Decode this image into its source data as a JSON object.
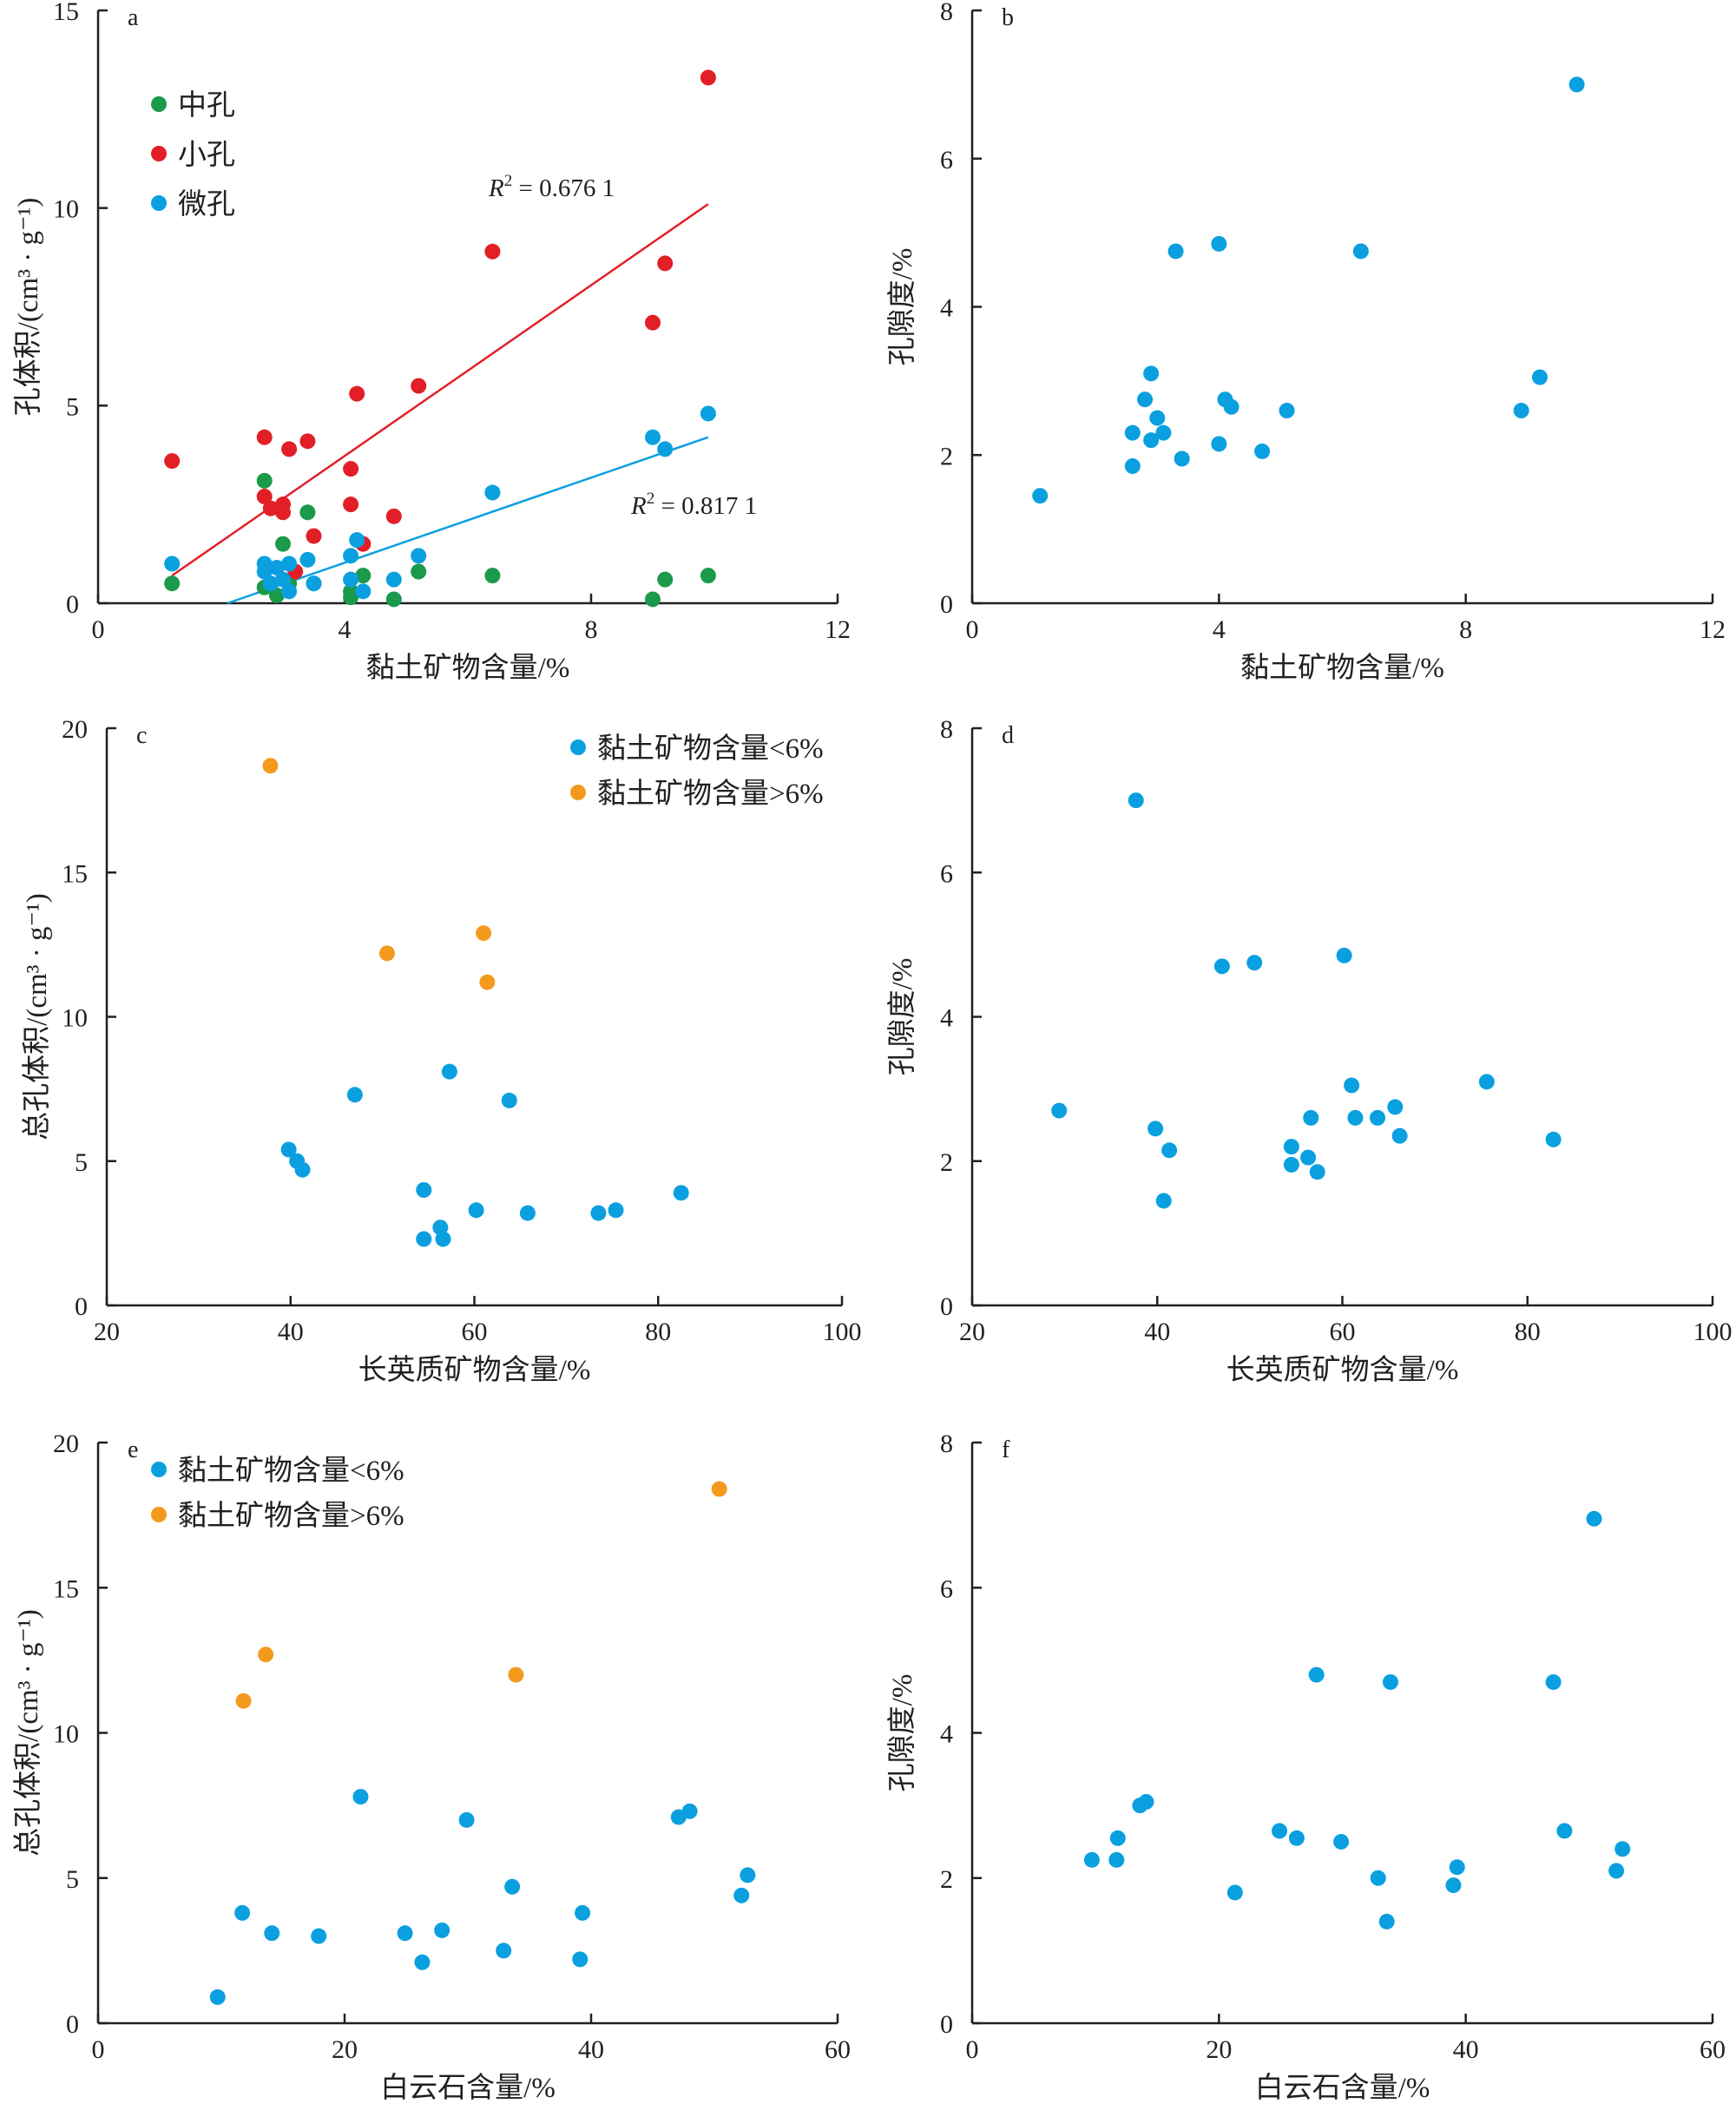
{
  "colors": {
    "green": "#1a9a4a",
    "red": "#e21f26",
    "blue": "#0aa0e0",
    "orange": "#f39a1e",
    "axis": "#231f20"
  },
  "chart_data": [
    {
      "id": "a",
      "type": "scatter",
      "letter": "a",
      "xlabel": "黏土矿物含量/%",
      "ylabel": "孔体积/(cm³ · g⁻¹)",
      "xlim": [
        0,
        12
      ],
      "ylim": [
        0,
        15
      ],
      "xticks": [
        0,
        4,
        8,
        12
      ],
      "yticks": [
        0,
        5,
        10,
        15
      ],
      "legend": [
        {
          "label": "中孔",
          "color": "green"
        },
        {
          "label": "小孔",
          "color": "red"
        },
        {
          "label": "微孔",
          "color": "blue"
        }
      ],
      "legend_position": "top-left",
      "series": [
        {
          "name": "中孔",
          "color": "green",
          "points": [
            [
              1.2,
              0.5
            ],
            [
              2.7,
              3.1
            ],
            [
              2.7,
              0.4
            ],
            [
              2.9,
              0.2
            ],
            [
              3.0,
              1.5
            ],
            [
              3.1,
              0.5
            ],
            [
              3.4,
              2.3
            ],
            [
              3.5,
              0.5
            ],
            [
              4.1,
              0.3
            ],
            [
              4.1,
              0.15
            ],
            [
              4.3,
              0.7
            ],
            [
              4.8,
              0.1
            ],
            [
              5.2,
              0.8
            ],
            [
              6.4,
              0.7
            ],
            [
              9.0,
              0.1
            ],
            [
              9.2,
              0.6
            ],
            [
              9.9,
              0.7
            ]
          ]
        },
        {
          "name": "小孔",
          "color": "red",
          "points": [
            [
              1.2,
              3.6
            ],
            [
              2.7,
              4.2
            ],
            [
              2.7,
              2.7
            ],
            [
              2.8,
              2.4
            ],
            [
              3.0,
              2.5
            ],
            [
              3.0,
              2.3
            ],
            [
              3.1,
              3.9
            ],
            [
              3.2,
              0.8
            ],
            [
              3.4,
              4.1
            ],
            [
              3.5,
              1.7
            ],
            [
              4.1,
              3.4
            ],
            [
              4.1,
              2.5
            ],
            [
              4.2,
              5.3
            ],
            [
              4.3,
              1.5
            ],
            [
              4.8,
              2.2
            ],
            [
              5.2,
              5.5
            ],
            [
              6.4,
              8.9
            ],
            [
              9.0,
              7.1
            ],
            [
              9.2,
              8.6
            ],
            [
              9.9,
              13.3
            ]
          ]
        },
        {
          "name": "微孔",
          "color": "blue",
          "points": [
            [
              1.2,
              1.0
            ],
            [
              2.7,
              1.0
            ],
            [
              2.7,
              0.8
            ],
            [
              2.8,
              0.5
            ],
            [
              2.9,
              0.9
            ],
            [
              3.0,
              0.6
            ],
            [
              3.1,
              1.0
            ],
            [
              3.1,
              0.3
            ],
            [
              3.4,
              1.1
            ],
            [
              3.5,
              0.5
            ],
            [
              4.1,
              1.2
            ],
            [
              4.1,
              0.6
            ],
            [
              4.2,
              1.6
            ],
            [
              4.3,
              0.3
            ],
            [
              4.8,
              0.6
            ],
            [
              5.2,
              1.2
            ],
            [
              6.4,
              2.8
            ],
            [
              9.0,
              4.2
            ],
            [
              9.2,
              3.9
            ],
            [
              9.9,
              4.8
            ]
          ]
        }
      ],
      "fits": [
        {
          "color": "red",
          "from": [
            1.2,
            0.7
          ],
          "to": [
            9.9,
            10.1
          ],
          "label_pre": "R",
          "label_sup": "2",
          "label_post": " = 0.676 1"
        },
        {
          "color": "blue",
          "from": [
            2.1,
            0.0
          ],
          "to": [
            9.9,
            4.2
          ],
          "label_pre": "R",
          "label_sup": "2",
          "label_post": " = 0.817 1"
        }
      ]
    },
    {
      "id": "b",
      "type": "scatter",
      "letter": "b",
      "xlabel": "黏土矿物含量/%",
      "ylabel": "孔隙度/%",
      "xlim": [
        0,
        12
      ],
      "ylim": [
        0,
        8
      ],
      "xticks": [
        0,
        4,
        8,
        12
      ],
      "yticks": [
        0,
        2,
        4,
        6,
        8
      ],
      "legend": [],
      "series": [
        {
          "name": "",
          "color": "blue",
          "points": [
            [
              1.1,
              1.45
            ],
            [
              2.6,
              2.3
            ],
            [
              2.6,
              1.85
            ],
            [
              2.8,
              2.75
            ],
            [
              2.9,
              3.1
            ],
            [
              2.9,
              2.2
            ],
            [
              3.0,
              2.5
            ],
            [
              3.1,
              2.3
            ],
            [
              3.3,
              4.75
            ],
            [
              3.4,
              1.95
            ],
            [
              4.0,
              4.85
            ],
            [
              4.0,
              2.15
            ],
            [
              4.1,
              2.75
            ],
            [
              4.2,
              2.65
            ],
            [
              4.7,
              2.05
            ],
            [
              5.1,
              2.6
            ],
            [
              6.3,
              4.75
            ],
            [
              8.9,
              2.6
            ],
            [
              9.2,
              3.05
            ],
            [
              9.8,
              7.0
            ]
          ]
        }
      ],
      "fits": []
    },
    {
      "id": "c",
      "type": "scatter",
      "letter": "c",
      "xlabel": "长英质矿物含量/%",
      "ylabel": "总孔体积/(cm³ · g⁻¹)",
      "xlim": [
        20,
        100
      ],
      "ylim": [
        0,
        20
      ],
      "xticks": [
        20,
        40,
        60,
        80,
        100
      ],
      "yticks": [
        0,
        5,
        10,
        15,
        20
      ],
      "legend": [
        {
          "label": "黏土矿物含量<6%",
          "color": "blue"
        },
        {
          "label": "黏土矿物含量>6%",
          "color": "orange"
        }
      ],
      "legend_position": "top-right",
      "series": [
        {
          "name": "黏土矿物含量<6%",
          "color": "blue",
          "points": [
            [
              39.8,
              5.4
            ],
            [
              40.7,
              5.0
            ],
            [
              41.3,
              4.7
            ],
            [
              47.0,
              7.3
            ],
            [
              54.5,
              4.0
            ],
            [
              54.5,
              2.3
            ],
            [
              56.3,
              2.7
            ],
            [
              56.6,
              2.3
            ],
            [
              57.3,
              8.1
            ],
            [
              60.2,
              3.3
            ],
            [
              63.8,
              7.1
            ],
            [
              65.8,
              3.2
            ],
            [
              73.5,
              3.2
            ],
            [
              75.4,
              3.3
            ],
            [
              82.5,
              3.9
            ]
          ]
        },
        {
          "name": "黏土矿物含量>6%",
          "color": "orange",
          "points": [
            [
              37.8,
              18.7
            ],
            [
              50.5,
              12.2
            ],
            [
              61.0,
              12.9
            ],
            [
              61.4,
              11.2
            ]
          ]
        }
      ],
      "fits": []
    },
    {
      "id": "d",
      "type": "scatter",
      "letter": "d",
      "xlabel": "长英质矿物含量/%",
      "ylabel": "孔隙度/%",
      "xlim": [
        20,
        100
      ],
      "ylim": [
        0,
        8
      ],
      "xticks": [
        20,
        40,
        60,
        80,
        100
      ],
      "yticks": [
        0,
        2,
        4,
        6,
        8
      ],
      "legend": [],
      "series": [
        {
          "name": "",
          "color": "blue",
          "points": [
            [
              29.4,
              2.7
            ],
            [
              37.7,
              7.0
            ],
            [
              39.8,
              2.45
            ],
            [
              40.7,
              1.45
            ],
            [
              41.3,
              2.15
            ],
            [
              47.0,
              4.7
            ],
            [
              50.5,
              4.75
            ],
            [
              54.5,
              2.2
            ],
            [
              54.5,
              1.95
            ],
            [
              56.3,
              2.05
            ],
            [
              56.6,
              2.6
            ],
            [
              57.3,
              1.85
            ],
            [
              60.2,
              4.85
            ],
            [
              61.0,
              3.05
            ],
            [
              61.4,
              2.6
            ],
            [
              63.8,
              2.6
            ],
            [
              65.7,
              2.75
            ],
            [
              66.2,
              2.35
            ],
            [
              75.6,
              3.1
            ],
            [
              82.8,
              2.3
            ]
          ]
        }
      ],
      "fits": []
    },
    {
      "id": "e",
      "type": "scatter",
      "letter": "e",
      "xlabel": "白云石含量/%",
      "ylabel": "总孔体积/(cm³ · g⁻¹)",
      "xlim": [
        0,
        60
      ],
      "ylim": [
        0,
        20
      ],
      "xticks": [
        0,
        20,
        40,
        60
      ],
      "yticks": [
        0,
        5,
        10,
        15,
        20
      ],
      "legend": [
        {
          "label": "黏土矿物含量<6%",
          "color": "blue"
        },
        {
          "label": "黏土矿物含量>6%",
          "color": "orange"
        }
      ],
      "legend_position": "top-left",
      "series": [
        {
          "name": "黏土矿物含量<6%",
          "color": "blue",
          "points": [
            [
              9.7,
              0.9
            ],
            [
              11.7,
              3.8
            ],
            [
              14.1,
              3.1
            ],
            [
              17.9,
              3.0
            ],
            [
              21.3,
              7.8
            ],
            [
              24.9,
              3.1
            ],
            [
              26.3,
              2.1
            ],
            [
              27.9,
              3.2
            ],
            [
              29.9,
              7.0
            ],
            [
              32.9,
              2.5
            ],
            [
              33.6,
              4.7
            ],
            [
              39.1,
              2.2
            ],
            [
              39.3,
              3.8
            ],
            [
              47.1,
              7.1
            ],
            [
              48.0,
              7.3
            ],
            [
              52.2,
              4.4
            ],
            [
              52.7,
              5.1
            ]
          ]
        },
        {
          "name": "黏土矿物含量>6%",
          "color": "orange",
          "points": [
            [
              11.8,
              11.1
            ],
            [
              13.6,
              12.7
            ],
            [
              33.9,
              12.0
            ],
            [
              50.4,
              18.4
            ]
          ]
        }
      ],
      "fits": []
    },
    {
      "id": "f",
      "type": "scatter",
      "letter": "f",
      "xlabel": "白云石含量/%",
      "ylabel": "孔隙度/%",
      "xlim": [
        0,
        60
      ],
      "ylim": [
        0,
        8
      ],
      "xticks": [
        0,
        20,
        40,
        60
      ],
      "yticks": [
        0,
        2,
        4,
        6,
        8
      ],
      "legend": [],
      "series": [
        {
          "name": "",
          "color": "blue",
          "points": [
            [
              9.7,
              2.25
            ],
            [
              11.7,
              2.25
            ],
            [
              11.8,
              2.55
            ],
            [
              13.6,
              3.0
            ],
            [
              14.1,
              3.05
            ],
            [
              21.3,
              1.8
            ],
            [
              24.9,
              2.65
            ],
            [
              26.3,
              2.55
            ],
            [
              27.9,
              4.8
            ],
            [
              29.9,
              2.5
            ],
            [
              32.9,
              2.0
            ],
            [
              33.6,
              1.4
            ],
            [
              33.9,
              4.7
            ],
            [
              39.0,
              1.9
            ],
            [
              39.3,
              2.15
            ],
            [
              47.1,
              4.7
            ],
            [
              48.0,
              2.65
            ],
            [
              50.4,
              6.95
            ],
            [
              52.2,
              2.1
            ],
            [
              52.7,
              2.4
            ]
          ]
        }
      ],
      "fits": []
    }
  ]
}
